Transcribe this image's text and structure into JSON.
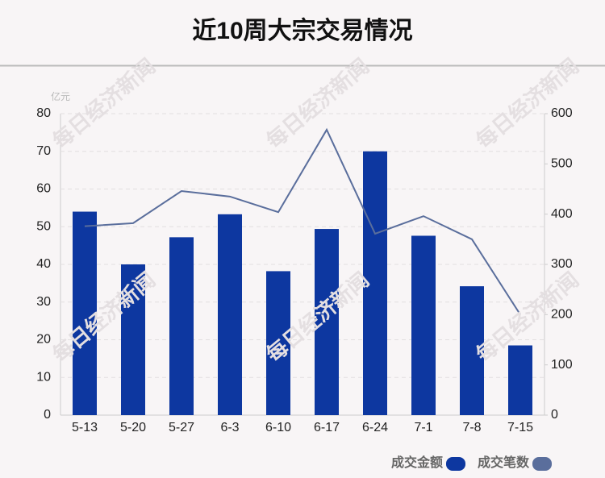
{
  "chart_data": {
    "type": "bar",
    "title": "近10周大宗交易情况",
    "y_unit": "亿元",
    "watermark": "每日经济新闻",
    "categories": [
      "5-13",
      "5-20",
      "5-27",
      "6-3",
      "6-10",
      "6-17",
      "6-24",
      "7-1",
      "7-8",
      "7-15"
    ],
    "series": [
      {
        "name": "成交金额",
        "color": "#0d37a0",
        "type": "bar",
        "values": [
          54,
          40,
          47.2,
          53.3,
          38.2,
          49.4,
          70,
          47.6,
          34.2,
          18.5
        ]
      },
      {
        "name": "成交笔数",
        "color": "#5a6e9c",
        "type": "line",
        "axis": "y2",
        "values": [
          376,
          382,
          446,
          435,
          404,
          568,
          361,
          396,
          350,
          200
        ]
      }
    ],
    "ylim": [
      0,
      80
    ],
    "yticks": [
      0,
      10,
      20,
      30,
      40,
      50,
      60,
      70,
      80
    ],
    "y2lim": [
      0,
      600
    ],
    "y2ticks": [
      0,
      100,
      200,
      300,
      400,
      500,
      600
    ],
    "grid": true
  }
}
